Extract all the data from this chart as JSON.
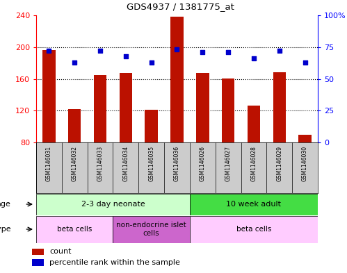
{
  "title": "GDS4937 / 1381775_at",
  "samples": [
    "GSM1146031",
    "GSM1146032",
    "GSM1146033",
    "GSM1146034",
    "GSM1146035",
    "GSM1146036",
    "GSM1146026",
    "GSM1146027",
    "GSM1146028",
    "GSM1146029",
    "GSM1146030"
  ],
  "counts": [
    196,
    122,
    165,
    167,
    121,
    238,
    167,
    160,
    126,
    168,
    90
  ],
  "percentiles": [
    72,
    63,
    72,
    68,
    63,
    73,
    71,
    71,
    66,
    72,
    63
  ],
  "ylim_left": [
    80,
    240
  ],
  "ylim_right": [
    0,
    100
  ],
  "yticks_left": [
    80,
    120,
    160,
    200,
    240
  ],
  "yticks_right": [
    0,
    25,
    50,
    75,
    100
  ],
  "ytick_right_labels": [
    "0",
    "25",
    "50",
    "75",
    "100%"
  ],
  "grid_yticks": [
    120,
    160,
    200
  ],
  "bar_color": "#bb1100",
  "dot_color": "#0000cc",
  "bar_bottom": 80,
  "age_groups": [
    {
      "label": "2-3 day neonate",
      "start": 0,
      "end": 5,
      "color": "#ccffcc"
    },
    {
      "label": "10 week adult",
      "start": 6,
      "end": 10,
      "color": "#44dd44"
    }
  ],
  "cell_groups": [
    {
      "label": "beta cells",
      "start": 0,
      "end": 2,
      "color": "#ffccff"
    },
    {
      "label": "non-endocrine islet\ncells",
      "start": 3,
      "end": 5,
      "color": "#cc66cc"
    },
    {
      "label": "beta cells",
      "start": 6,
      "end": 10,
      "color": "#ffccff"
    }
  ],
  "bg_color": "#ffffff",
  "sample_area_color": "#cccccc",
  "legend_items": [
    {
      "color": "#bb1100",
      "label": "count"
    },
    {
      "color": "#0000cc",
      "label": "percentile rank within the sample"
    }
  ]
}
